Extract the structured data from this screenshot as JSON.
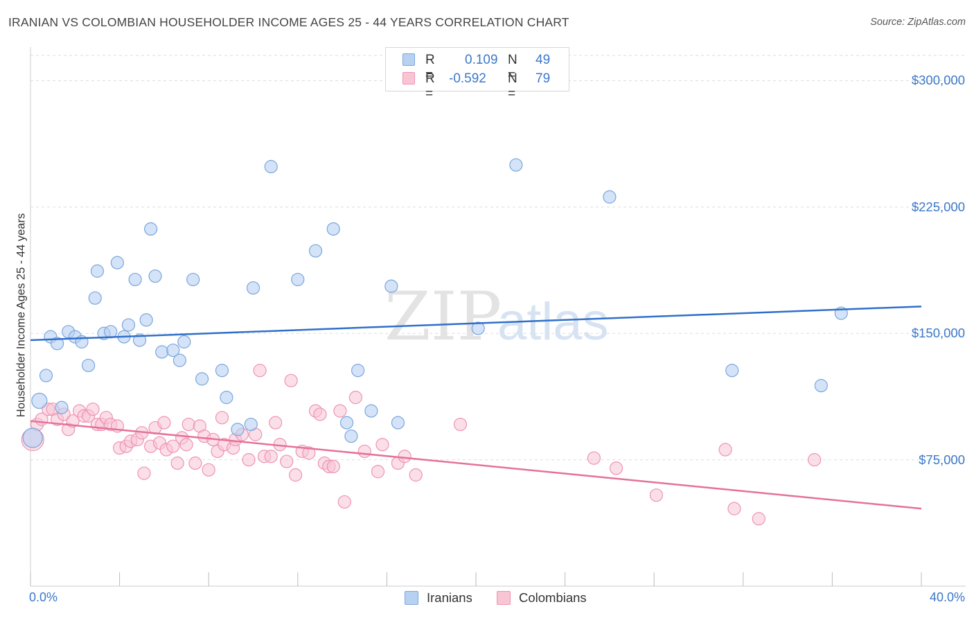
{
  "header": {
    "title": "IRANIAN VS COLOMBIAN HOUSEHOLDER INCOME AGES 25 - 44 YEARS CORRELATION CHART",
    "source": "Source: ZipAtlas.com"
  },
  "watermark": {
    "zip": "ZIP",
    "atlas": "atlas"
  },
  "legend": {
    "iranians": {
      "r_label": "R =",
      "r_value": "0.109",
      "n_label": "N =",
      "n_value": "49"
    },
    "colombians": {
      "r_label": "R =",
      "r_value": "-0.592",
      "n_label": "N =",
      "n_value": "79"
    }
  },
  "bottom_legend": {
    "iranians": "Iranians",
    "colombians": "Colombians"
  },
  "colors": {
    "iranian_fill": "#b8d1f1",
    "iranian_stroke": "#7aa6dd",
    "iranian_line": "#2f6fca",
    "colombian_fill": "#f8c5d5",
    "colombian_stroke": "#ee93b0",
    "colombian_line": "#e5719a",
    "tick_label": "#3a78c9",
    "grid": "#dddddd"
  },
  "chart_data": {
    "type": "scatter",
    "title": "IRANIAN VS COLOMBIAN HOUSEHOLDER INCOME AGES 25 - 44 YEARS CORRELATION CHART",
    "xlabel": "",
    "ylabel": "Householder Income Ages 25 - 44 years",
    "xlim": [
      0,
      40
    ],
    "ylim": [
      0,
      315000
    ],
    "x_tick_labels": [
      "0.0%",
      "40.0%"
    ],
    "y_ticks": [
      {
        "value": 75000,
        "label": "$75,000"
      },
      {
        "value": 150000,
        "label": "$150,000"
      },
      {
        "value": 225000,
        "label": "$225,000"
      },
      {
        "value": 300000,
        "label": "$300,000"
      }
    ],
    "grid": true,
    "series": [
      {
        "name": "Iranians",
        "R": 0.109,
        "N": 49,
        "trend": {
          "x": [
            0,
            40
          ],
          "y": [
            146000,
            166000
          ]
        },
        "points": [
          [
            0.1,
            88000
          ],
          [
            0.4,
            110000
          ],
          [
            0.7,
            125000
          ],
          [
            0.9,
            148000
          ],
          [
            1.2,
            144000
          ],
          [
            1.4,
            106000
          ],
          [
            1.7,
            151000
          ],
          [
            2.0,
            148000
          ],
          [
            2.3,
            145000
          ],
          [
            2.6,
            131000
          ],
          [
            2.9,
            171000
          ],
          [
            3.0,
            187000
          ],
          [
            3.3,
            150000
          ],
          [
            3.6,
            151000
          ],
          [
            3.9,
            192000
          ],
          [
            4.2,
            148000
          ],
          [
            4.4,
            155000
          ],
          [
            4.7,
            182000
          ],
          [
            4.9,
            146000
          ],
          [
            5.2,
            158000
          ],
          [
            5.4,
            212000
          ],
          [
            5.6,
            184000
          ],
          [
            5.9,
            139000
          ],
          [
            6.4,
            140000
          ],
          [
            6.7,
            134000
          ],
          [
            6.9,
            145000
          ],
          [
            7.3,
            182000
          ],
          [
            7.7,
            123000
          ],
          [
            8.6,
            128000
          ],
          [
            8.8,
            112000
          ],
          [
            9.3,
            93000
          ],
          [
            9.9,
            96000
          ],
          [
            10.0,
            177000
          ],
          [
            10.8,
            249000
          ],
          [
            12.0,
            182000
          ],
          [
            12.8,
            199000
          ],
          [
            13.6,
            212000
          ],
          [
            14.2,
            97000
          ],
          [
            14.4,
            89000
          ],
          [
            14.7,
            128000
          ],
          [
            15.3,
            104000
          ],
          [
            16.2,
            178000
          ],
          [
            16.5,
            97000
          ],
          [
            20.1,
            153000
          ],
          [
            21.8,
            250000
          ],
          [
            26.0,
            231000
          ],
          [
            31.5,
            128000
          ],
          [
            35.5,
            119000
          ],
          [
            36.4,
            162000
          ]
        ]
      },
      {
        "name": "Colombians",
        "R": -0.592,
        "N": 79,
        "trend": {
          "x": [
            0,
            40
          ],
          "y": [
            98000,
            46000
          ]
        },
        "points": [
          [
            0.1,
            87000
          ],
          [
            0.3,
            96000
          ],
          [
            0.5,
            99000
          ],
          [
            0.8,
            105000
          ],
          [
            1.0,
            105000
          ],
          [
            1.2,
            99000
          ],
          [
            1.5,
            102000
          ],
          [
            1.7,
            93000
          ],
          [
            1.9,
            98000
          ],
          [
            2.2,
            104000
          ],
          [
            2.4,
            101000
          ],
          [
            2.6,
            101000
          ],
          [
            2.8,
            105000
          ],
          [
            3.0,
            96000
          ],
          [
            3.2,
            96000
          ],
          [
            3.4,
            100000
          ],
          [
            3.6,
            96000
          ],
          [
            3.9,
            95000
          ],
          [
            4.0,
            82000
          ],
          [
            4.3,
            83000
          ],
          [
            4.5,
            86000
          ],
          [
            4.8,
            87000
          ],
          [
            5.0,
            91000
          ],
          [
            5.1,
            67000
          ],
          [
            5.4,
            83000
          ],
          [
            5.6,
            94000
          ],
          [
            5.8,
            85000
          ],
          [
            6.0,
            97000
          ],
          [
            6.1,
            81000
          ],
          [
            6.4,
            83000
          ],
          [
            6.6,
            73000
          ],
          [
            6.8,
            88000
          ],
          [
            7.0,
            84000
          ],
          [
            7.1,
            96000
          ],
          [
            7.4,
            73000
          ],
          [
            7.6,
            95000
          ],
          [
            7.8,
            89000
          ],
          [
            8.0,
            69000
          ],
          [
            8.2,
            87000
          ],
          [
            8.4,
            80000
          ],
          [
            8.6,
            100000
          ],
          [
            8.7,
            84000
          ],
          [
            9.1,
            82000
          ],
          [
            9.2,
            87000
          ],
          [
            9.5,
            90000
          ],
          [
            9.8,
            75000
          ],
          [
            10.1,
            90000
          ],
          [
            10.3,
            128000
          ],
          [
            10.5,
            77000
          ],
          [
            10.8,
            77000
          ],
          [
            11.0,
            97000
          ],
          [
            11.2,
            84000
          ],
          [
            11.5,
            74000
          ],
          [
            11.7,
            122000
          ],
          [
            11.9,
            66000
          ],
          [
            12.2,
            80000
          ],
          [
            12.5,
            79000
          ],
          [
            12.8,
            104000
          ],
          [
            13.0,
            102000
          ],
          [
            13.2,
            73000
          ],
          [
            13.4,
            71000
          ],
          [
            13.6,
            71000
          ],
          [
            13.9,
            104000
          ],
          [
            14.1,
            50000
          ],
          [
            14.6,
            112000
          ],
          [
            15.0,
            80000
          ],
          [
            15.6,
            68000
          ],
          [
            15.8,
            84000
          ],
          [
            16.5,
            73000
          ],
          [
            16.8,
            77000
          ],
          [
            17.3,
            66000
          ],
          [
            19.3,
            96000
          ],
          [
            25.3,
            76000
          ],
          [
            26.3,
            70000
          ],
          [
            28.1,
            54000
          ],
          [
            31.2,
            81000
          ],
          [
            31.6,
            46000
          ],
          [
            32.7,
            40000
          ],
          [
            35.2,
            75000
          ]
        ]
      }
    ]
  }
}
